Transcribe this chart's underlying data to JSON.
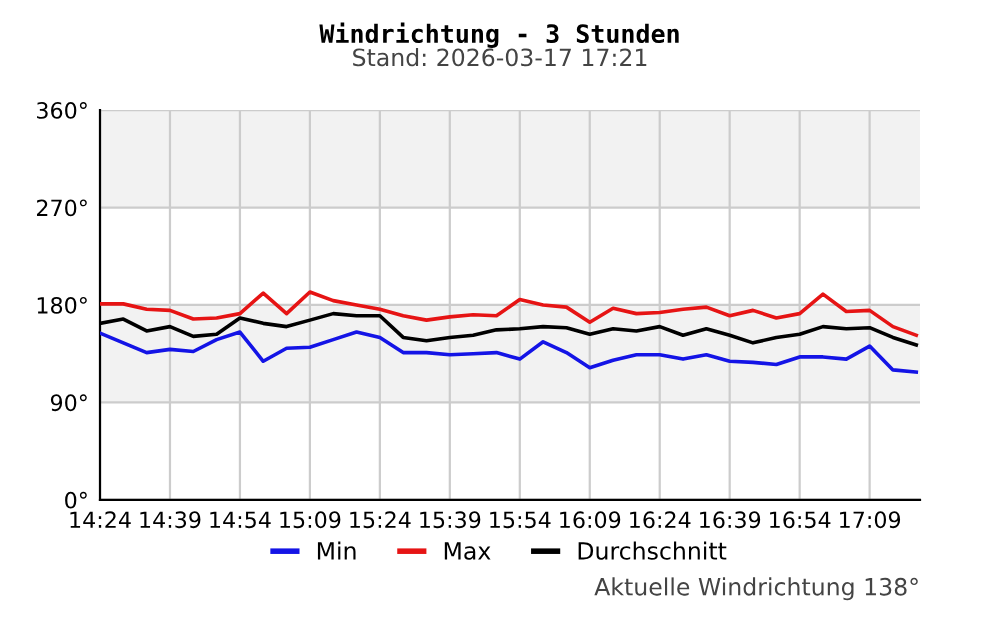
{
  "chart_data": {
    "type": "line",
    "title": "Windrichtung - 3 Stunden",
    "subtitle": "Stand: 2026-03-17 17:21",
    "annotations": [
      "Aktuelle Windrichtung 138°"
    ],
    "x": [
      14.4,
      14.4833,
      14.5667,
      14.65,
      14.7333,
      14.8167,
      14.9,
      14.9833,
      15.0667,
      15.15,
      15.2333,
      15.3167,
      15.4,
      15.4833,
      15.5667,
      15.65,
      15.7333,
      15.8167,
      15.9,
      15.9833,
      16.0667,
      16.15,
      16.2333,
      16.3167,
      16.4,
      16.4833,
      16.5667,
      16.65,
      16.7333,
      16.8167,
      16.9,
      16.9833,
      17.0667,
      17.15,
      17.2333,
      17.3167
    ],
    "series": [
      {
        "name": "Min",
        "color": "#1414e6",
        "values": [
          154,
          145,
          136,
          139,
          137,
          148,
          155,
          128,
          140,
          141,
          148,
          155,
          150,
          136,
          136,
          134,
          135,
          136,
          130,
          146,
          136,
          122,
          129,
          134,
          134,
          130,
          134,
          128,
          127,
          125,
          132,
          132,
          130,
          142,
          120,
          118
        ]
      },
      {
        "name": "Max",
        "color": "#e61414",
        "values": [
          181,
          181,
          176,
          175,
          167,
          168,
          172,
          191,
          172,
          192,
          184,
          180,
          176,
          170,
          166,
          169,
          171,
          170,
          185,
          180,
          178,
          164,
          177,
          172,
          173,
          176,
          178,
          170,
          175,
          168,
          172,
          190,
          174,
          175,
          160,
          152
        ]
      },
      {
        "name": "Durchschnitt",
        "color": "#000000",
        "values": [
          163,
          167,
          156,
          160,
          151,
          153,
          168,
          163,
          160,
          166,
          172,
          170,
          170,
          150,
          147,
          150,
          152,
          157,
          158,
          160,
          159,
          153,
          158,
          156,
          160,
          152,
          158,
          152,
          145,
          150,
          153,
          160,
          158,
          159,
          150,
          143
        ]
      }
    ],
    "xlim": [
      14.4,
      17.33
    ],
    "xticks": [
      {
        "value": 14.4,
        "label": "14:24"
      },
      {
        "value": 14.65,
        "label": "14:39"
      },
      {
        "value": 14.9,
        "label": "14:54"
      },
      {
        "value": 15.15,
        "label": "15:09"
      },
      {
        "value": 15.4,
        "label": "15:24"
      },
      {
        "value": 15.65,
        "label": "15:39"
      },
      {
        "value": 15.9,
        "label": "15:54"
      },
      {
        "value": 16.15,
        "label": "16:09"
      },
      {
        "value": 16.4,
        "label": "16:24"
      },
      {
        "value": 16.65,
        "label": "16:39"
      },
      {
        "value": 16.9,
        "label": "16:54"
      },
      {
        "value": 17.15,
        "label": "17:09"
      }
    ],
    "ylim": [
      0,
      360
    ],
    "yticks": [
      {
        "value": 0,
        "label": "0°"
      },
      {
        "value": 90,
        "label": "90°"
      },
      {
        "value": 180,
        "label": "180°"
      },
      {
        "value": 270,
        "label": "270°"
      },
      {
        "value": 360,
        "label": "360°"
      }
    ],
    "bands": [
      {
        "axis": "y",
        "from": 90,
        "to": 180,
        "color": "#f2f2f2"
      },
      {
        "axis": "y",
        "from": 270,
        "to": 360,
        "color": "#f2f2f2"
      }
    ],
    "grid": true,
    "legend": "bottom",
    "marker": "none",
    "line_style": "solid"
  }
}
